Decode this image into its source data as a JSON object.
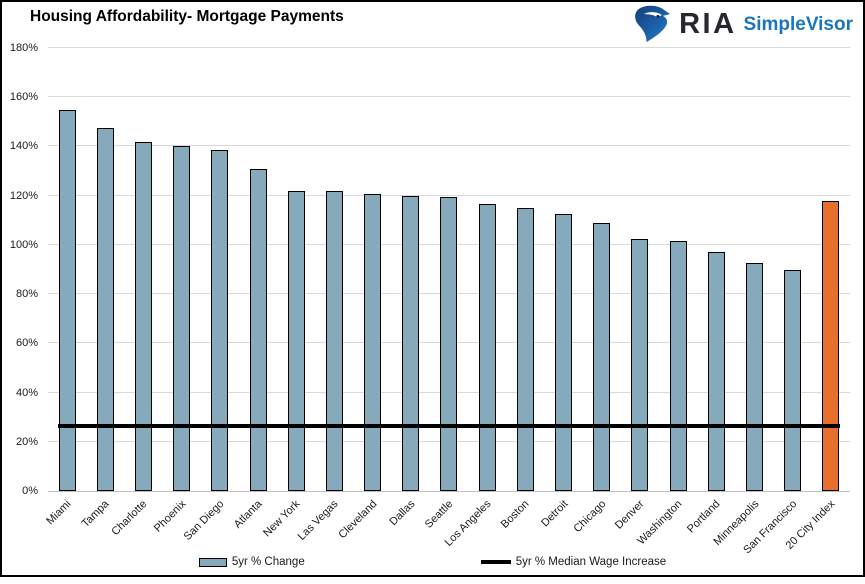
{
  "header": {
    "title": "Housing Affordability- Mortgage Payments",
    "logo": {
      "icon": "ria-eagle-icon",
      "brand": "RIA",
      "product": "SimpleVisor"
    }
  },
  "colors": {
    "bar": "#86A9BC",
    "bar_border": "#000000",
    "highlight": "#E8702C",
    "reference_line": "#000000",
    "gridline": "#D9D9D9",
    "axis_line": "#BFBFBF",
    "brand_text": "#26282E",
    "product_text": "#1B75BB"
  },
  "chart_data": {
    "type": "bar",
    "title": "Housing Affordability- Mortgage Payments",
    "categories": [
      "Miami",
      "Tampa",
      "Charlotte",
      "Phoenix",
      "San Diego",
      "Atlanta",
      "New York",
      "Las Vegas",
      "Cleveland",
      "Dallas",
      "Seattle",
      "Los Angeles",
      "Boston",
      "Detroit",
      "Chicago",
      "Denver",
      "Washington",
      "Portland",
      "Minneapolis",
      "San Francisco",
      "20 City Index"
    ],
    "series": [
      {
        "name": "5yr % Change",
        "values": [
          155,
          147.5,
          142,
          140,
          138.5,
          131,
          122,
          122,
          120.5,
          120,
          119.5,
          116.5,
          115,
          112.5,
          109,
          102.5,
          101.5,
          97,
          92.5,
          90,
          118
        ]
      }
    ],
    "highlight_category": "20 City Index",
    "reference_line": {
      "name": "5yr % Median Wage Increase",
      "value": 26.5
    },
    "ylim": [
      0,
      180
    ],
    "ytick_step": 20,
    "ytick_labels": [
      "0%",
      "20%",
      "40%",
      "60%",
      "80%",
      "100%",
      "120%",
      "140%",
      "160%",
      "180%"
    ],
    "grid": true,
    "legend_position": "bottom"
  },
  "legend": {
    "items": [
      {
        "label": "5yr % Change",
        "swatch": "bar"
      },
      {
        "label": "5yr % Median Wage Increase",
        "swatch": "line"
      }
    ]
  }
}
